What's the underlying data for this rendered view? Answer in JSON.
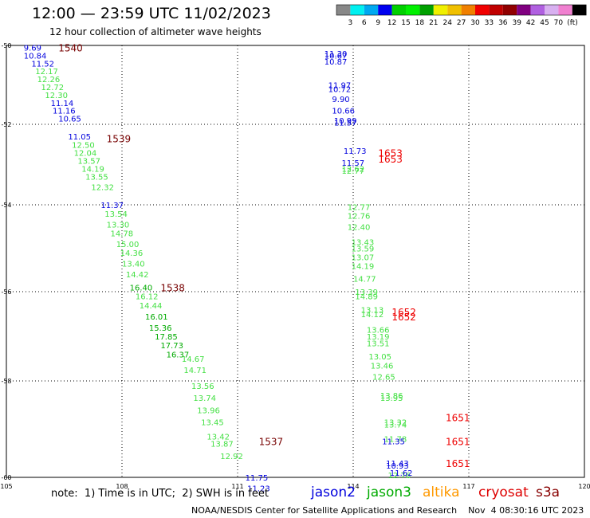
{
  "title": "12:00 — 23:59 UTC 11/02/2023",
  "subtitle": "12 hour collection of altimeter wave heights",
  "colorbar": {
    "colors": [
      "#888888",
      "#00f0f0",
      "#00a8f0",
      "#0000f0",
      "#00d000",
      "#00f000",
      "#00a000",
      "#f0f000",
      "#f0c000",
      "#f08000",
      "#f00000",
      "#c00000",
      "#900000",
      "#800080",
      "#b060e0",
      "#d8b0f0",
      "#f080d0",
      "#000000"
    ],
    "labels": [
      "3",
      "6",
      "9",
      "12",
      "15",
      "18",
      "21",
      "24",
      "27",
      "30",
      "33",
      "36",
      "39",
      "42",
      "45",
      "70"
    ],
    "unit": "(ft)"
  },
  "footer": {
    "note": "note:  1) Time is in UTC;  2) SWH is in feet",
    "credit": "NOAA/NESDIS Center for Satellite Applications and Research    Nov  4 08:30:16 UTC 2023"
  },
  "legend": [
    {
      "name": "jason2",
      "color": "#0000dd"
    },
    {
      "name": "jason3",
      "color": "#00aa00"
    },
    {
      "name": "altika",
      "color": "#ff9900"
    },
    {
      "name": "cryosat",
      "color": "#dd0000"
    },
    {
      "name": "s3a",
      "color": "#880000"
    }
  ],
  "chart_data": {
    "type": "scatter",
    "xlabel": "",
    "ylabel": "",
    "x_ticks": [
      105,
      108,
      111,
      114,
      117,
      120
    ],
    "y_ticks": [
      -50,
      -52,
      -54,
      -56,
      -58,
      -60
    ],
    "xlim": [
      105,
      120
    ],
    "ylim": [
      -60,
      -50
    ],
    "grid": true,
    "colors": {
      "blue": "#0000dd",
      "lightgreen": "#44e044",
      "darkred": "#770000",
      "red": "#ee0000"
    },
    "track_labels": [
      {
        "text": "1540",
        "lon": 106.35,
        "lat": -50.05,
        "color": "darkred"
      },
      {
        "text": "1539",
        "lon": 107.6,
        "lat": -52.35,
        "color": "darkred"
      },
      {
        "text": "1538",
        "lon": 109.0,
        "lat": -55.9,
        "color": "darkred"
      },
      {
        "text": "1537",
        "lon": 111.55,
        "lat": -59.25,
        "color": "darkred"
      },
      {
        "text": "1653",
        "lon": 114.65,
        "lat": -52.7,
        "color": "red"
      },
      {
        "text": "1653",
        "lon": 114.65,
        "lat": -52.85,
        "color": "red"
      },
      {
        "text": "1652",
        "lon": 115.0,
        "lat": -56.45,
        "color": "red"
      },
      {
        "text": "1652",
        "lon": 115.0,
        "lat": -56.55,
        "color": "red"
      },
      {
        "text": "1651",
        "lon": 116.4,
        "lat": -58.75,
        "color": "red"
      },
      {
        "text": "1651",
        "lon": 116.4,
        "lat": -59.25,
        "color": "red"
      },
      {
        "text": "1651",
        "lon": 116.4,
        "lat": -59.7,
        "color": "red"
      }
    ],
    "series": [
      {
        "name": "jason3",
        "color": "blue",
        "points": [
          {
            "lon": 105.45,
            "lat": -50.05,
            "v": "9.69"
          },
          {
            "lon": 105.45,
            "lat": -50.25,
            "v": "10.84"
          },
          {
            "lon": 105.65,
            "lat": -50.45,
            "v": "11.52"
          },
          {
            "lon": 106.15,
            "lat": -51.45,
            "v": "11.14"
          },
          {
            "lon": 106.2,
            "lat": -51.65,
            "v": "11.16"
          },
          {
            "lon": 106.35,
            "lat": -51.85,
            "v": "10.65"
          },
          {
            "lon": 106.6,
            "lat": -52.3,
            "v": "11.05"
          },
          {
            "lon": 107.45,
            "lat": -54.0,
            "v": "11.37"
          },
          {
            "lon": 111.2,
            "lat": -60.0,
            "v": "11.75"
          },
          {
            "lon": 111.25,
            "lat": -60.25,
            "v": "11.23"
          }
        ]
      },
      {
        "name": "jason3",
        "color": "lightgreen",
        "points": [
          {
            "lon": 105.75,
            "lat": -50.65,
            "v": "12.17"
          },
          {
            "lon": 105.8,
            "lat": -50.85,
            "v": "12.26"
          },
          {
            "lon": 105.9,
            "lat": -51.05,
            "v": "12.72"
          },
          {
            "lon": 106.0,
            "lat": -51.25,
            "v": "12.30"
          },
          {
            "lon": 106.7,
            "lat": -52.5,
            "v": "12.50"
          },
          {
            "lon": 106.75,
            "lat": -52.7,
            "v": "12.04"
          },
          {
            "lon": 106.85,
            "lat": -52.9,
            "v": "13.57"
          },
          {
            "lon": 106.95,
            "lat": -53.1,
            "v": "14.19"
          },
          {
            "lon": 107.05,
            "lat": -53.3,
            "v": "13.55"
          },
          {
            "lon": 107.2,
            "lat": -53.55,
            "v": "12.32"
          },
          {
            "lon": 107.55,
            "lat": -54.2,
            "v": "13.54"
          },
          {
            "lon": 107.6,
            "lat": -54.45,
            "v": "13.30"
          },
          {
            "lon": 107.7,
            "lat": -54.65,
            "v": "14.78"
          },
          {
            "lon": 107.85,
            "lat": -54.9,
            "v": "15.00"
          },
          {
            "lon": 107.95,
            "lat": -55.1,
            "v": "14.36"
          },
          {
            "lon": 108.0,
            "lat": -55.35,
            "v": "13.40"
          },
          {
            "lon": 108.1,
            "lat": -55.6,
            "v": "14.42"
          },
          {
            "lon": 108.35,
            "lat": -56.1,
            "v": "16.12"
          },
          {
            "lon": 108.45,
            "lat": -56.3,
            "v": "14.44"
          },
          {
            "lon": 109.55,
            "lat": -57.5,
            "v": "14.67"
          },
          {
            "lon": 109.6,
            "lat": -57.75,
            "v": "14.71"
          },
          {
            "lon": 109.8,
            "lat": -58.1,
            "v": "13.56"
          },
          {
            "lon": 109.85,
            "lat": -58.35,
            "v": "13.74"
          },
          {
            "lon": 109.95,
            "lat": -58.6,
            "v": "13.96"
          },
          {
            "lon": 110.05,
            "lat": -58.85,
            "v": "13.45"
          },
          {
            "lon": 110.2,
            "lat": -59.15,
            "v": "13.42"
          },
          {
            "lon": 110.3,
            "lat": -59.3,
            "v": "13.87"
          },
          {
            "lon": 110.55,
            "lat": -59.55,
            "v": "12.92"
          }
        ]
      },
      {
        "name": "jason3",
        "color": "darkgreen",
        "points": [
          {
            "lon": 108.2,
            "lat": -55.9,
            "v": "16.40"
          },
          {
            "lon": 108.6,
            "lat": -56.55,
            "v": "16.01"
          },
          {
            "lon": 108.7,
            "lat": -56.8,
            "v": "15.36"
          },
          {
            "lon": 108.85,
            "lat": -57.0,
            "v": "17.85"
          },
          {
            "lon": 109.0,
            "lat": -57.2,
            "v": "17.73"
          },
          {
            "lon": 109.15,
            "lat": -57.4,
            "v": "16.37"
          }
        ]
      },
      {
        "name": "cryosat",
        "color": "blue",
        "points": [
          {
            "lon": 113.25,
            "lat": -50.2,
            "v": "11.30"
          },
          {
            "lon": 113.25,
            "lat": -50.25,
            "v": "10.67"
          },
          {
            "lon": 113.25,
            "lat": -50.4,
            "v": "10.87"
          },
          {
            "lon": 113.35,
            "lat": -51.0,
            "v": "11.97"
          },
          {
            "lon": 113.35,
            "lat": -51.1,
            "v": "10.72"
          },
          {
            "lon": 113.45,
            "lat": -51.35,
            "v": "9.90"
          },
          {
            "lon": 113.45,
            "lat": -51.65,
            "v": "10.66"
          },
          {
            "lon": 113.5,
            "lat": -51.9,
            "v": "10.99"
          },
          {
            "lon": 113.5,
            "lat": -51.95,
            "v": "11.57"
          },
          {
            "lon": 113.75,
            "lat": -52.65,
            "v": "11.73"
          },
          {
            "lon": 113.7,
            "lat": -52.95,
            "v": "11.57"
          }
        ]
      },
      {
        "name": "cryosat",
        "color": "lightgreen",
        "points": [
          {
            "lon": 113.7,
            "lat": -53.1,
            "v": "12.62"
          },
          {
            "lon": 113.7,
            "lat": -53.15,
            "v": "12.77"
          },
          {
            "lon": 113.85,
            "lat": -54.05,
            "v": "12.77"
          },
          {
            "lon": 113.85,
            "lat": -54.25,
            "v": "12.76"
          },
          {
            "lon": 113.85,
            "lat": -54.5,
            "v": "12.40"
          },
          {
            "lon": 113.95,
            "lat": -54.85,
            "v": "13.43"
          },
          {
            "lon": 113.95,
            "lat": -55.0,
            "v": "13.59"
          },
          {
            "lon": 113.95,
            "lat": -55.2,
            "v": "13.07"
          },
          {
            "lon": 113.95,
            "lat": -55.4,
            "v": "14.19"
          },
          {
            "lon": 114.0,
            "lat": -55.7,
            "v": "14.77"
          },
          {
            "lon": 114.05,
            "lat": -56.0,
            "v": "13.39"
          },
          {
            "lon": 114.05,
            "lat": -56.1,
            "v": "14.89"
          },
          {
            "lon": 114.2,
            "lat": -56.4,
            "v": "13.13"
          },
          {
            "lon": 114.2,
            "lat": -56.5,
            "v": "14.12"
          },
          {
            "lon": 114.35,
            "lat": -56.85,
            "v": "13.66"
          },
          {
            "lon": 114.35,
            "lat": -57.0,
            "v": "13.19"
          },
          {
            "lon": 114.35,
            "lat": -57.15,
            "v": "13.51"
          },
          {
            "lon": 114.4,
            "lat": -57.45,
            "v": "13.05"
          },
          {
            "lon": 114.45,
            "lat": -57.65,
            "v": "13.46"
          },
          {
            "lon": 114.5,
            "lat": -57.9,
            "v": "12.65"
          },
          {
            "lon": 114.7,
            "lat": -58.3,
            "v": "13.86"
          },
          {
            "lon": 114.7,
            "lat": -58.35,
            "v": "13.95"
          },
          {
            "lon": 114.8,
            "lat": -58.85,
            "v": "13.32"
          },
          {
            "lon": 114.8,
            "lat": -58.9,
            "v": "13.74"
          },
          {
            "lon": 114.8,
            "lat": -59.2,
            "v": "11.78"
          },
          {
            "lon": 114.9,
            "lat": -59.95,
            "v": "12.76"
          }
        ]
      },
      {
        "name": "cryosat",
        "color": "blue",
        "points": [
          {
            "lon": 114.75,
            "lat": -59.25,
            "v": "11.35"
          },
          {
            "lon": 114.85,
            "lat": -59.7,
            "v": "11.43"
          },
          {
            "lon": 114.85,
            "lat": -59.75,
            "v": "10.93"
          },
          {
            "lon": 114.95,
            "lat": -59.9,
            "v": "11.62"
          }
        ]
      }
    ]
  }
}
